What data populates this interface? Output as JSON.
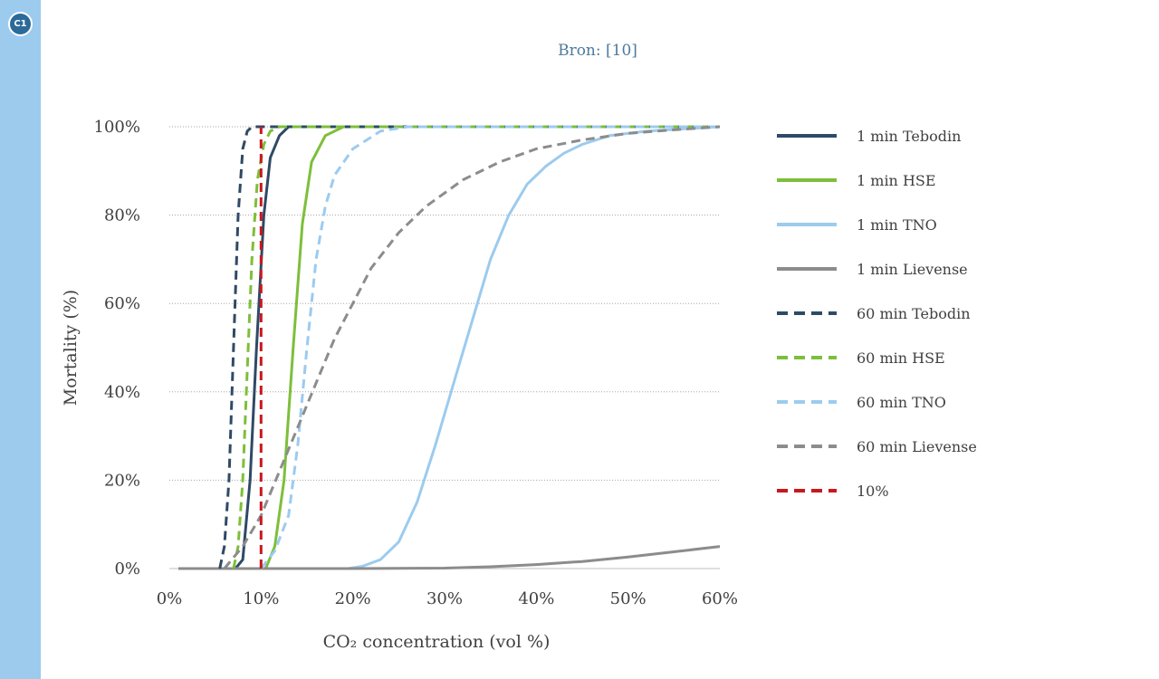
{
  "panel": {
    "badge": "C1",
    "source": "Bron: [10]"
  },
  "colors": {
    "side_strip": "#9ccbee",
    "badge": "#2b6a99",
    "tebodin": "#2e4a66",
    "hse": "#7dbf3a",
    "tno": "#9ccbee",
    "lievense": "#8c8c8c",
    "ref_10pct": "#c8171e"
  },
  "chart_data": {
    "type": "line",
    "title": "",
    "xlabel": "CO₂ concentration (vol %)",
    "ylabel": "Mortality (%)",
    "xlim": [
      0,
      60
    ],
    "ylim": [
      0,
      100
    ],
    "x_ticks": [
      "0%",
      "10%",
      "20%",
      "30%",
      "40%",
      "50%",
      "60%"
    ],
    "y_ticks": [
      "0%",
      "20%",
      "40%",
      "60%",
      "80%",
      "100%"
    ],
    "grid": "horizontal dotted",
    "legend_position": "right",
    "series": [
      {
        "name": "1 min Tebodin",
        "color": "#2e4a66",
        "dash": "solid",
        "points": [
          [
            1,
            0
          ],
          [
            7.2,
            0
          ],
          [
            8,
            2
          ],
          [
            8.8,
            20
          ],
          [
            9.5,
            50
          ],
          [
            10.3,
            80
          ],
          [
            11,
            93
          ],
          [
            12,
            98
          ],
          [
            13,
            100
          ],
          [
            60,
            100
          ]
        ]
      },
      {
        "name": "1 min HSE",
        "color": "#7dbf3a",
        "dash": "solid",
        "points": [
          [
            1,
            0
          ],
          [
            10.5,
            0
          ],
          [
            11.5,
            5
          ],
          [
            12.5,
            20
          ],
          [
            13.5,
            50
          ],
          [
            14.5,
            78
          ],
          [
            15.5,
            92
          ],
          [
            17,
            98
          ],
          [
            19,
            100
          ],
          [
            60,
            100
          ]
        ]
      },
      {
        "name": "1 min TNO",
        "color": "#9ccbee",
        "dash": "solid",
        "points": [
          [
            19.5,
            0
          ],
          [
            21,
            0.5
          ],
          [
            23,
            2
          ],
          [
            25,
            6
          ],
          [
            27,
            15
          ],
          [
            29,
            28
          ],
          [
            31,
            42
          ],
          [
            33,
            56
          ],
          [
            35,
            70
          ],
          [
            37,
            80
          ],
          [
            39,
            87
          ],
          [
            41,
            91
          ],
          [
            43,
            94
          ],
          [
            45,
            96
          ],
          [
            48,
            98
          ],
          [
            52,
            99
          ],
          [
            60,
            100
          ]
        ]
      },
      {
        "name": "1 min Lievense",
        "color": "#8c8c8c",
        "dash": "solid",
        "points": [
          [
            1,
            0
          ],
          [
            20,
            0
          ],
          [
            30,
            0.1
          ],
          [
            35,
            0.4
          ],
          [
            40,
            0.9
          ],
          [
            45,
            1.6
          ],
          [
            50,
            2.6
          ],
          [
            55,
            3.8
          ],
          [
            60,
            5
          ]
        ]
      },
      {
        "name": "60 min Tebodin",
        "color": "#2e4a66",
        "dash": "dashed",
        "points": [
          [
            5.5,
            0
          ],
          [
            6,
            5
          ],
          [
            6.5,
            20
          ],
          [
            7,
            50
          ],
          [
            7.5,
            80
          ],
          [
            8,
            95
          ],
          [
            8.5,
            99
          ],
          [
            9,
            100
          ],
          [
            60,
            100
          ]
        ]
      },
      {
        "name": "60 min HSE",
        "color": "#7dbf3a",
        "dash": "dashed",
        "points": [
          [
            7,
            0
          ],
          [
            7.5,
            5
          ],
          [
            8,
            20
          ],
          [
            8.5,
            45
          ],
          [
            9,
            70
          ],
          [
            9.6,
            88
          ],
          [
            10.3,
            96
          ],
          [
            11,
            99
          ],
          [
            12,
            100
          ],
          [
            60,
            100
          ]
        ]
      },
      {
        "name": "60 min TNO",
        "color": "#9ccbee",
        "dash": "dashed",
        "points": [
          [
            10,
            0
          ],
          [
            11.5,
            4
          ],
          [
            13,
            12
          ],
          [
            14,
            28
          ],
          [
            15,
            50
          ],
          [
            16,
            70
          ],
          [
            17,
            82
          ],
          [
            18,
            89
          ],
          [
            20,
            95
          ],
          [
            23,
            99
          ],
          [
            26,
            100
          ],
          [
            60,
            100
          ]
        ]
      },
      {
        "name": "60 min Lievense",
        "color": "#8c8c8c",
        "dash": "dashed",
        "points": [
          [
            6,
            0
          ],
          [
            8,
            5
          ],
          [
            10,
            12
          ],
          [
            12,
            22
          ],
          [
            14,
            32
          ],
          [
            16,
            42
          ],
          [
            18,
            52
          ],
          [
            20,
            60
          ],
          [
            22,
            68
          ],
          [
            25,
            76
          ],
          [
            28,
            82
          ],
          [
            32,
            88
          ],
          [
            36,
            92
          ],
          [
            40,
            95
          ],
          [
            45,
            97
          ],
          [
            50,
            98.5
          ],
          [
            55,
            99.3
          ],
          [
            60,
            100
          ]
        ]
      },
      {
        "name": "10%",
        "color": "#c8171e",
        "dash": "dashed",
        "points": [
          [
            10,
            0
          ],
          [
            10,
            100
          ]
        ]
      }
    ]
  }
}
